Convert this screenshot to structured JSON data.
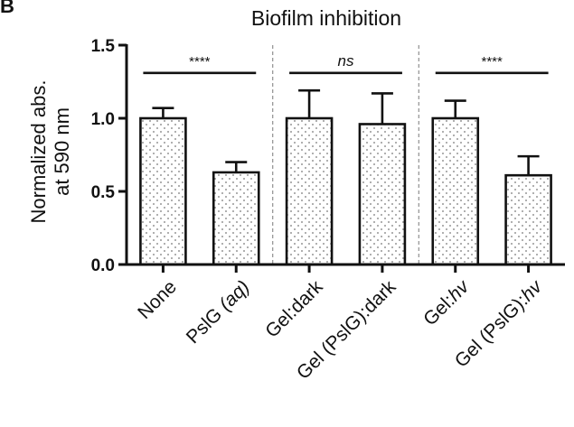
{
  "panel_label": "B",
  "chart_data": {
    "type": "bar",
    "title": "Biofilm inhibition",
    "ylabel_line1": "Normalized abs.",
    "ylabel_line2": "at 590 nm",
    "ylim": [
      0,
      1.5
    ],
    "yticks": [
      "0.0",
      "0.5",
      "1.0",
      "1.5"
    ],
    "categories": [
      {
        "parts": [
          {
            "t": "None",
            "i": false
          }
        ]
      },
      {
        "parts": [
          {
            "t": "PslG ",
            "i": false
          },
          {
            "t": "(aq)",
            "i": true
          }
        ]
      },
      {
        "parts": [
          {
            "t": "Gel:dark",
            "i": false
          }
        ]
      },
      {
        "parts": [
          {
            "t": "Gel (PslG):dark",
            "i": false
          }
        ]
      },
      {
        "parts": [
          {
            "t": "Gel:",
            "i": false
          },
          {
            "t": "hv",
            "i": true
          }
        ]
      },
      {
        "parts": [
          {
            "t": "Gel (PslG):",
            "i": false
          },
          {
            "t": "hv",
            "i": true
          }
        ]
      }
    ],
    "values": [
      1.0,
      0.63,
      1.0,
      0.96,
      1.0,
      0.61
    ],
    "errors": [
      0.07,
      0.07,
      0.19,
      0.21,
      0.12,
      0.13
    ],
    "significance": [
      {
        "from": 0,
        "to": 1,
        "label": "****",
        "italic": false,
        "y": 1.31
      },
      {
        "from": 2,
        "to": 3,
        "label": "ns",
        "italic": true,
        "y": 1.31
      },
      {
        "from": 4,
        "to": 5,
        "label": "****",
        "italic": false,
        "y": 1.31
      }
    ],
    "group_separators_after": [
      1,
      3
    ],
    "bar_fill": "#ffffff",
    "bar_pattern": "dots",
    "bar_stroke": "#111111",
    "separator_color": "#999999"
  }
}
